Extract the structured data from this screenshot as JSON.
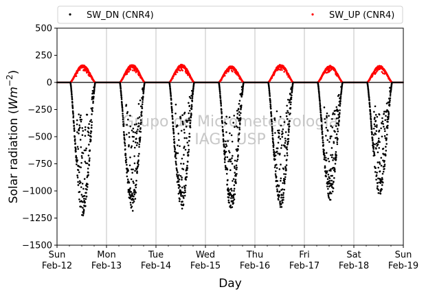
{
  "chart_data": {
    "type": "scatter",
    "title": "",
    "xlabel": "Day",
    "ylabel_main": "Solar radiation (",
    "ylabel_unit": "Wm",
    "ylabel_exp": "−2",
    "ylabel_close": ")",
    "ylim": [
      -1500,
      500
    ],
    "yticks": [
      500,
      250,
      0,
      -250,
      -500,
      -750,
      -1000,
      -1250,
      -1500
    ],
    "xlim": [
      "2023-02-12",
      "2023-02-19"
    ],
    "xticks": [
      {
        "day": "Sun",
        "date": "Feb-12"
      },
      {
        "day": "Mon",
        "date": "Feb-13"
      },
      {
        "day": "Tue",
        "date": "Feb-14"
      },
      {
        "day": "Wed",
        "date": "Feb-15"
      },
      {
        "day": "Thu",
        "date": "Feb-16"
      },
      {
        "day": "Fri",
        "date": "Feb-17"
      },
      {
        "day": "Sat",
        "date": "Feb-18"
      },
      {
        "day": "Sun",
        "date": "Feb-19"
      }
    ],
    "grid": "vertical",
    "legend_position": "top",
    "watermark": [
      "Grupo de Micrometeorologia",
      "IAG - USP"
    ],
    "series": [
      {
        "name": "SW_DN (CNR4)",
        "color": "#000000",
        "daily_minima": [
          -1240,
          -1200,
          -1170,
          -1200,
          -1170,
          -1090,
          -1040
        ]
      },
      {
        "name": "SW_UP (CNR4)",
        "color": "#ff0000",
        "daily_maxima": [
          160,
          165,
          165,
          150,
          165,
          155,
          155
        ]
      }
    ],
    "daylight_hours_local": [
      6.5,
      18.5
    ]
  }
}
